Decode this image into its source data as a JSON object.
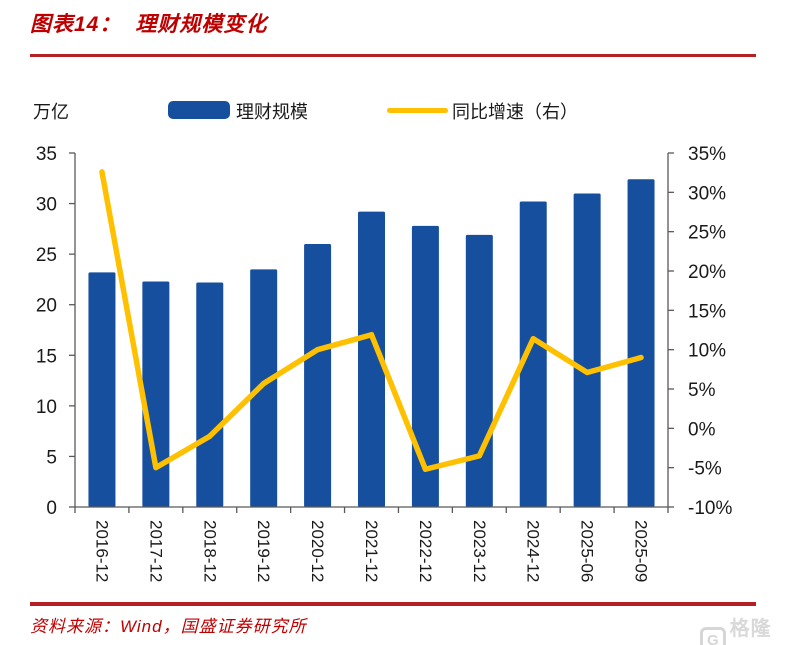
{
  "header": {
    "label": "图表14：",
    "title": "理财规模变化"
  },
  "legend": {
    "unit": "万亿",
    "bar_label": "理财规模",
    "line_label": "同比增速（右）"
  },
  "footer": {
    "source": "资料来源：Wind，国盛证券研究所"
  },
  "watermark": {
    "icon": "gelonghui-logo",
    "text": "格隆汇"
  },
  "colors": {
    "bar_blue": "#164F9E",
    "line_gold": "#FFC000",
    "accent_red": "#C00000",
    "rule_red": "#B52025",
    "axis_gray": "#595959",
    "label_black": "#1a1a1a",
    "watermark_gray": "#d6d6d6"
  },
  "chart_data": {
    "type": "bar",
    "subtype": "bar+line dual axis",
    "title": "理财规模变化",
    "categories": [
      "2016-12",
      "2017-12",
      "2018-12",
      "2019-12",
      "2020-12",
      "2021-12",
      "2022-12",
      "2023-12",
      "2024-12",
      "2025-06",
      "2025-09"
    ],
    "series": [
      {
        "name": "理财规模",
        "type": "bar",
        "axis": "left",
        "color": "#164F9E",
        "values": [
          23.2,
          22.3,
          22.2,
          23.5,
          26.0,
          29.2,
          27.8,
          26.9,
          30.2,
          31.0,
          32.4
        ]
      },
      {
        "name": "同比增速（右）",
        "type": "line",
        "axis": "right",
        "color": "#FFC000",
        "values": [
          32.6,
          -5.0,
          -1.0,
          5.7,
          10.0,
          11.9,
          -5.2,
          -3.5,
          11.4,
          7.1,
          9.0
        ]
      }
    ],
    "left_axis": {
      "label": "万亿",
      "range": [
        0,
        35
      ],
      "ticks": [
        0,
        5,
        10,
        15,
        20,
        25,
        30,
        35
      ]
    },
    "right_axis": {
      "label": "同比增速",
      "range": [
        -10,
        35
      ],
      "ticks": [
        -10,
        -5,
        0,
        5,
        10,
        15,
        20,
        25,
        30,
        35
      ],
      "tick_labels": [
        "-10%",
        "-5%",
        "0%",
        "5%",
        "10%",
        "15%",
        "20%",
        "25%",
        "30%",
        "35%"
      ]
    },
    "grid": false,
    "legend_position": "top"
  }
}
